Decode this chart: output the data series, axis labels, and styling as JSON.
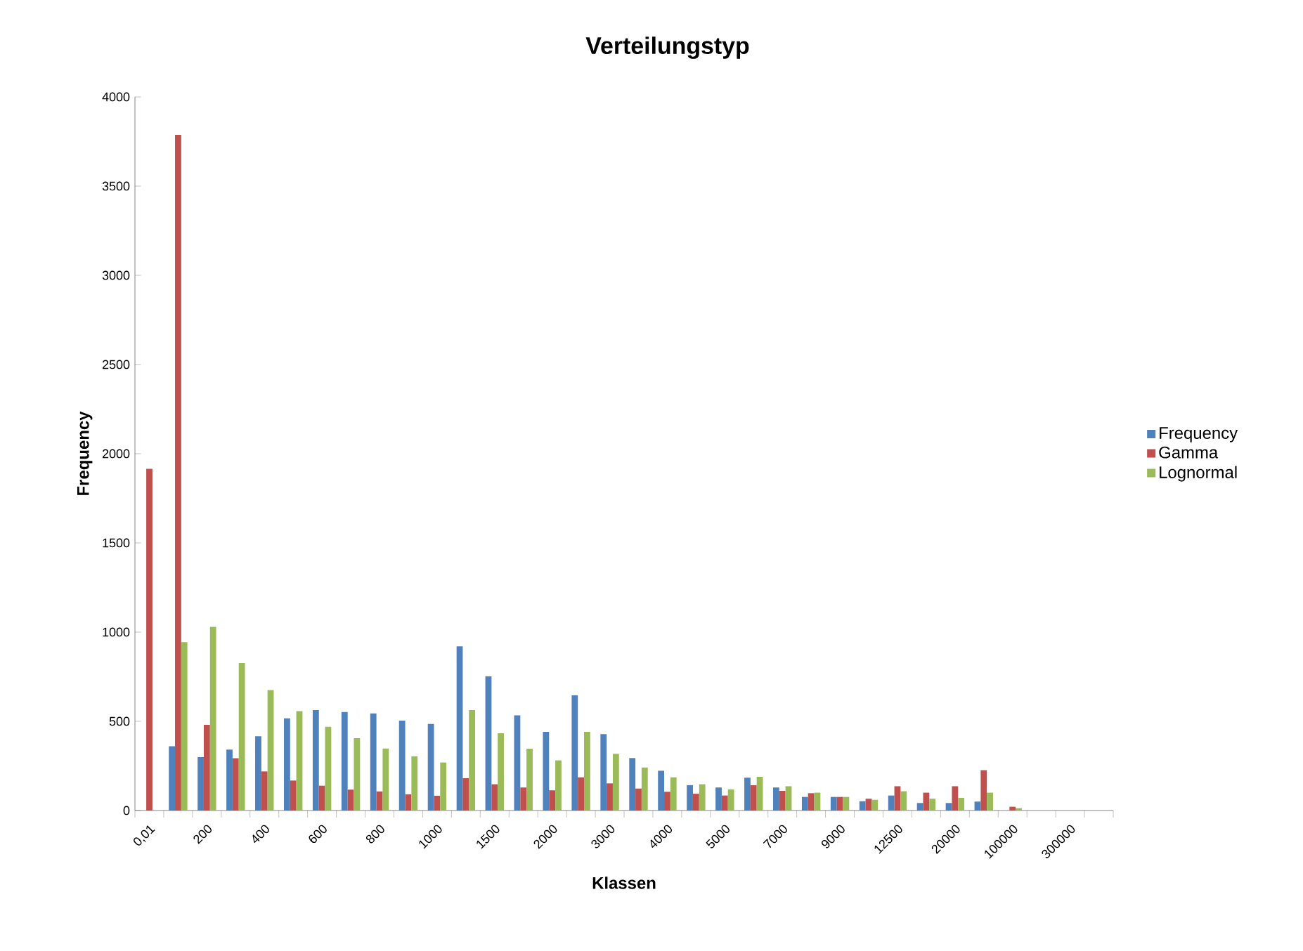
{
  "chart_data": {
    "type": "bar",
    "title": "Verteilungstyp",
    "xlabel": "Klassen",
    "ylabel": "Frequency",
    "categories": [
      "0,01",
      null,
      "200",
      null,
      "400",
      null,
      "600",
      null,
      "800",
      null,
      "1000",
      null,
      "1500",
      null,
      "2000",
      null,
      "3000",
      null,
      "4000",
      null,
      "5000",
      null,
      "7000",
      null,
      "9000",
      null,
      "12500",
      null,
      "20000",
      null,
      "100000",
      null,
      "300000",
      null
    ],
    "series": [
      {
        "name": "Frequency",
        "color": "#4f81bd",
        "values": [
          0,
          360,
          299,
          341,
          416,
          517,
          563,
          552,
          544,
          504,
          485,
          920,
          752,
          533,
          441,
          646,
          428,
          294,
          223,
          142,
          129,
          184,
          129,
          76,
          76,
          52,
          84,
          42,
          42,
          50,
          0,
          0,
          0,
          0
        ]
      },
      {
        "name": "Gamma",
        "color": "#c0504d",
        "values": [
          1915,
          3787,
          480,
          293,
          219,
          168,
          139,
          117,
          107,
          91,
          83,
          181,
          147,
          129,
          113,
          186,
          152,
          123,
          105,
          94,
          84,
          142,
          110,
          97,
          76,
          66,
          136,
          100,
          136,
          226,
          21,
          0,
          0,
          0
        ]
      },
      {
        "name": "Lognormal",
        "color": "#9bbb59",
        "values": [
          0,
          944,
          1029,
          827,
          675,
          557,
          469,
          405,
          347,
          304,
          269,
          563,
          433,
          346,
          281,
          441,
          318,
          241,
          186,
          147,
          118,
          189,
          136,
          100,
          76,
          60,
          108,
          66,
          71,
          100,
          13,
          0,
          0,
          0
        ]
      }
    ],
    "ylim": [
      0,
      4000
    ],
    "yticks": [
      0,
      500,
      1000,
      1500,
      2000,
      2500,
      3000,
      3500,
      4000
    ],
    "grid": false,
    "legend": "right"
  }
}
